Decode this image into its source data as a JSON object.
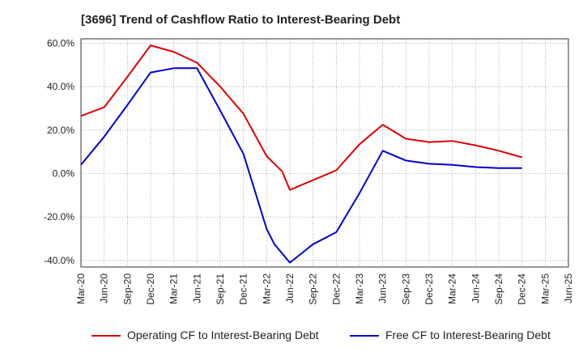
{
  "chart_data": {
    "type": "line",
    "title": "[3696]  Trend of Cashflow Ratio to Interest-Bearing Debt",
    "xlabel": "",
    "ylabel": "",
    "categories": [
      "Mar-20",
      "Jun-20",
      "Sep-20",
      "Dec-20",
      "Mar-21",
      "Jun-21",
      "Sep-21",
      "Dec-21",
      "Mar-22",
      "Jun-22",
      "Sep-22",
      "Dec-22",
      "Mar-23",
      "Jun-23",
      "Sep-23",
      "Dec-23",
      "Mar-24",
      "Jun-24",
      "Sep-24",
      "Dec-24",
      "Mar-25",
      "Jun-25"
    ],
    "yticks": [
      60,
      40,
      20,
      0,
      -20,
      -40
    ],
    "ytick_labels": [
      "60.0%",
      "40.0%",
      "20.0%",
      "0.0%",
      "-20.0%",
      "-40.0%"
    ],
    "ylim": [
      -43,
      62
    ],
    "grid": true,
    "legend_position": "bottom",
    "series": [
      {
        "name": "Operating CF to Interest-Bearing Debt",
        "color": "#dd0000",
        "points": [
          {
            "x": "Mar-20",
            "y": 26.5
          },
          {
            "x": "Jun-20",
            "y": 30.5
          },
          {
            "x": "Sep-20",
            "y": 44.5
          },
          {
            "x": "Dec-20",
            "y": 59.0
          },
          {
            "x": "Mar-21",
            "y": 56.0
          },
          {
            "x": "Jun-21",
            "y": 51.0
          },
          {
            "x": "Sep-21",
            "y": 40.0
          },
          {
            "x": "Dec-21",
            "y": 27.5
          },
          {
            "x": "Mar-22",
            "y": 8.0
          },
          {
            "x": "May-22",
            "y": 1.0
          },
          {
            "x": "Jun-22",
            "y": -7.5
          },
          {
            "x": "Sep-22",
            "y": -3.0
          },
          {
            "x": "Dec-22",
            "y": 1.5
          },
          {
            "x": "Mar-23",
            "y": 13.5
          },
          {
            "x": "Jun-23",
            "y": 22.5
          },
          {
            "x": "Sep-23",
            "y": 16.0
          },
          {
            "x": "Dec-23",
            "y": 14.5
          },
          {
            "x": "Mar-24",
            "y": 15.0
          },
          {
            "x": "Jun-24",
            "y": 13.0
          },
          {
            "x": "Sep-24",
            "y": 10.5
          },
          {
            "x": "Dec-24",
            "y": 7.5
          }
        ]
      },
      {
        "name": "Free CF to Interest-Bearing Debt",
        "color": "#0000cc",
        "points": [
          {
            "x": "Mar-20",
            "y": 4.0
          },
          {
            "x": "Jun-20",
            "y": 17.0
          },
          {
            "x": "Sep-20",
            "y": 31.5
          },
          {
            "x": "Dec-20",
            "y": 46.5
          },
          {
            "x": "Mar-21",
            "y": 48.5
          },
          {
            "x": "Jun-21",
            "y": 48.5
          },
          {
            "x": "Sep-21",
            "y": 29.0
          },
          {
            "x": "Dec-21",
            "y": 9.0
          },
          {
            "x": "Mar-22",
            "y": -25.5
          },
          {
            "x": "Apr-22",
            "y": -32.5
          },
          {
            "x": "Jun-22",
            "y": -41.0
          },
          {
            "x": "Sep-22",
            "y": -32.5
          },
          {
            "x": "Dec-22",
            "y": -27.0
          },
          {
            "x": "Mar-23",
            "y": -9.0
          },
          {
            "x": "Jun-23",
            "y": 10.5
          },
          {
            "x": "Sep-23",
            "y": 6.0
          },
          {
            "x": "Dec-23",
            "y": 4.5
          },
          {
            "x": "Mar-24",
            "y": 4.0
          },
          {
            "x": "Jun-24",
            "y": 3.0
          },
          {
            "x": "Sep-24",
            "y": 2.5
          },
          {
            "x": "Dec-24",
            "y": 2.5
          }
        ]
      }
    ]
  }
}
